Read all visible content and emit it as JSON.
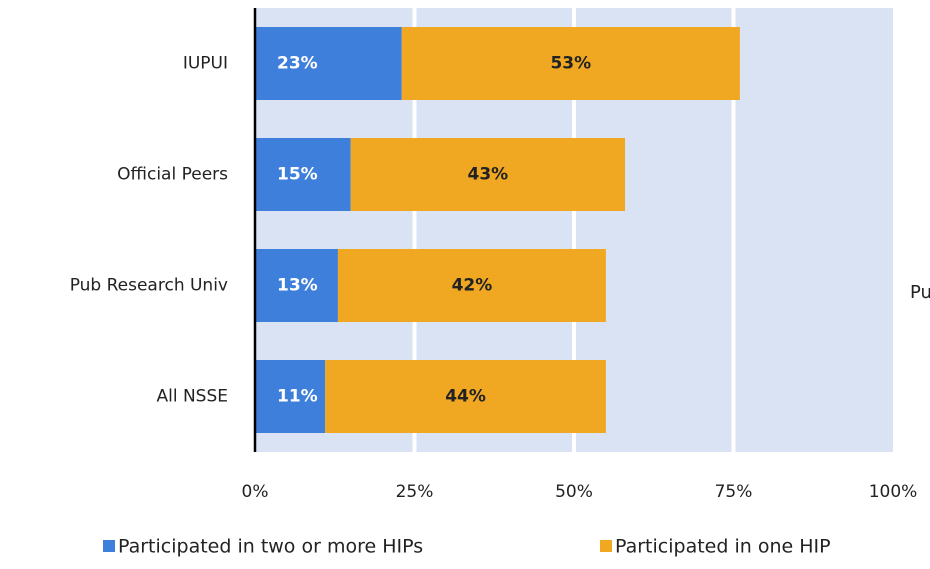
{
  "chart_data": {
    "type": "stacked_barh",
    "categories": [
      "IUPUI",
      "Official Peers",
      "Pub Research Univ",
      "All NSSE"
    ],
    "series": [
      {
        "name": "Participated in two or more HIPs",
        "color": "#3f7fdc",
        "values": [
          23,
          15,
          13,
          11
        ],
        "value_labels": [
          "23%",
          "15%",
          "13%",
          "11%"
        ]
      },
      {
        "name": "Participated in one HIP",
        "color": "#f0a823",
        "values": [
          53,
          43,
          42,
          44
        ],
        "value_labels": [
          "53%",
          "43%",
          "42%",
          "44%"
        ]
      }
    ],
    "xlim": [
      0,
      100
    ],
    "xticks": [
      {
        "value": 0,
        "label": "0%"
      },
      {
        "value": 25,
        "label": "25%"
      },
      {
        "value": 50,
        "label": "50%"
      },
      {
        "value": 75,
        "label": "75%"
      },
      {
        "value": 100,
        "label": "100%"
      }
    ],
    "grid": true,
    "legend": "bottom",
    "annotation": "Pu"
  }
}
